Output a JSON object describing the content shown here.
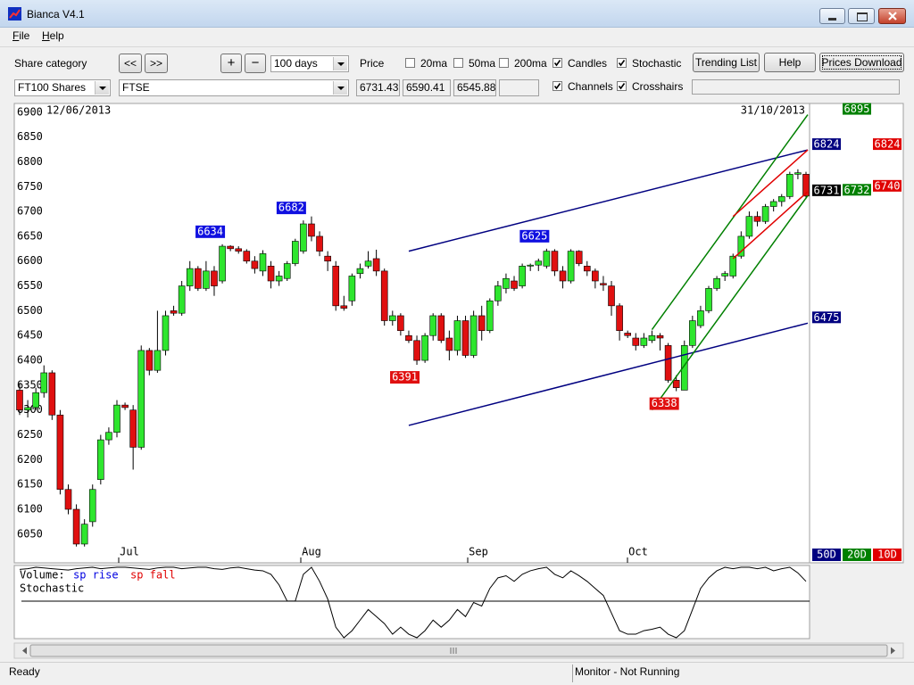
{
  "window": {
    "title": "Bianca V4.1"
  },
  "menu": [
    "File",
    "Help"
  ],
  "toolbar": {
    "share_category_label": "Share category",
    "prev": "<<",
    "next": ">>",
    "zoom_in": "+",
    "zoom_out": "−",
    "period": "100 days",
    "price_label": "Price",
    "checkboxes": [
      {
        "label": "20ma",
        "checked": false
      },
      {
        "label": "50ma",
        "checked": false
      },
      {
        "label": "200ma",
        "checked": false
      },
      {
        "label": "Candles",
        "checked": true
      },
      {
        "label": "Stochastic",
        "checked": true
      },
      {
        "label": "Channels",
        "checked": true
      },
      {
        "label": "Crosshairs",
        "checked": true
      }
    ],
    "buttons": [
      "Trending List",
      "Help",
      "Prices Download"
    ],
    "category": "FT100 Shares",
    "share": "FTSE",
    "prices": [
      "6731.43",
      "6590.41",
      "6545.88"
    ]
  },
  "chart_data": {
    "type": "candlestick",
    "start_date": "12/06/2013",
    "end_date": "31/10/2013",
    "months": [
      "Jul",
      "Aug",
      "Sep",
      "Oct"
    ],
    "ylim": [
      5994,
      6914
    ],
    "yticks": [
      6050,
      6100,
      6150,
      6200,
      6250,
      6300,
      6350,
      6400,
      6450,
      6500,
      6550,
      6600,
      6650,
      6700,
      6750,
      6800,
      6850,
      6900
    ],
    "up_color": "#2ee62e",
    "down_color": "#e01010",
    "candles": [
      [
        6340,
        6355,
        6290,
        6300
      ],
      [
        6300,
        6320,
        6285,
        6305
      ],
      [
        6305,
        6345,
        6300,
        6335
      ],
      [
        6335,
        6390,
        6325,
        6375
      ],
      [
        6375,
        6380,
        6280,
        6290
      ],
      [
        6290,
        6300,
        6130,
        6140
      ],
      [
        6140,
        6150,
        6090,
        6100
      ],
      [
        6100,
        6110,
        6025,
        6030
      ],
      [
        6030,
        6080,
        6025,
        6070
      ],
      [
        6075,
        6150,
        6065,
        6140
      ],
      [
        6160,
        6250,
        6150,
        6240
      ],
      [
        6240,
        6265,
        6230,
        6255
      ],
      [
        6255,
        6320,
        6245,
        6310
      ],
      [
        6310,
        6315,
        6300,
        6305
      ],
      [
        6300,
        6310,
        6180,
        6225
      ],
      [
        6225,
        6430,
        6220,
        6420
      ],
      [
        6420,
        6425,
        6370,
        6380
      ],
      [
        6380,
        6500,
        6375,
        6420
      ],
      [
        6420,
        6500,
        6410,
        6490
      ],
      [
        6500,
        6510,
        6490,
        6495
      ],
      [
        6495,
        6560,
        6490,
        6550
      ],
      [
        6550,
        6600,
        6540,
        6585
      ],
      [
        6585,
        6590,
        6540,
        6545
      ],
      [
        6545,
        6600,
        6540,
        6580
      ],
      [
        6580,
        6590,
        6530,
        6550
      ],
      [
        6560,
        6634,
        6555,
        6630
      ],
      [
        6630,
        6632,
        6620,
        6625
      ],
      [
        6625,
        6630,
        6615,
        6620
      ],
      [
        6620,
        6624,
        6595,
        6600
      ],
      [
        6600,
        6610,
        6575,
        6585
      ],
      [
        6580,
        6622,
        6570,
        6615
      ],
      [
        6590,
        6600,
        6545,
        6560
      ],
      [
        6560,
        6580,
        6550,
        6570
      ],
      [
        6565,
        6600,
        6560,
        6595
      ],
      [
        6595,
        6645,
        6590,
        6640
      ],
      [
        6620,
        6682,
        6615,
        6675
      ],
      [
        6675,
        6690,
        6640,
        6650
      ],
      [
        6650,
        6660,
        6610,
        6620
      ],
      [
        6610,
        6620,
        6580,
        6600
      ],
      [
        6590,
        6600,
        6500,
        6510
      ],
      [
        6510,
        6530,
        6500,
        6505
      ],
      [
        6520,
        6575,
        6510,
        6570
      ],
      [
        6575,
        6595,
        6565,
        6585
      ],
      [
        6590,
        6620,
        6585,
        6600
      ],
      [
        6605,
        6623,
        6570,
        6580
      ],
      [
        6580,
        6585,
        6470,
        6480
      ],
      [
        6480,
        6500,
        6470,
        6490
      ],
      [
        6490,
        6495,
        6450,
        6460
      ],
      [
        6450,
        6460,
        6435,
        6440
      ],
      [
        6440,
        6450,
        6391,
        6400
      ],
      [
        6400,
        6455,
        6395,
        6450
      ],
      [
        6450,
        6495,
        6440,
        6490
      ],
      [
        6490,
        6495,
        6435,
        6440
      ],
      [
        6445,
        6460,
        6400,
        6420
      ],
      [
        6420,
        6490,
        6410,
        6480
      ],
      [
        6480,
        6490,
        6405,
        6410
      ],
      [
        6410,
        6500,
        6405,
        6490
      ],
      [
        6490,
        6510,
        6440,
        6460
      ],
      [
        6460,
        6525,
        6455,
        6520
      ],
      [
        6520,
        6560,
        6510,
        6550
      ],
      [
        6545,
        6575,
        6535,
        6565
      ],
      [
        6560,
        6570,
        6540,
        6545
      ],
      [
        6550,
        6595,
        6545,
        6590
      ],
      [
        6590,
        6595,
        6580,
        6592
      ],
      [
        6592,
        6605,
        6580,
        6600
      ],
      [
        6590,
        6625,
        6585,
        6620
      ],
      [
        6620,
        6624,
        6570,
        6580
      ],
      [
        6580,
        6590,
        6545,
        6560
      ],
      [
        6560,
        6624,
        6555,
        6620
      ],
      [
        6620,
        6622,
        6590,
        6595
      ],
      [
        6590,
        6600,
        6570,
        6580
      ],
      [
        6580,
        6585,
        6545,
        6560
      ],
      [
        6555,
        6570,
        6540,
        6552
      ],
      [
        6550,
        6560,
        6490,
        6510
      ],
      [
        6510,
        6515,
        6440,
        6460
      ],
      [
        6455,
        6460,
        6445,
        6450
      ],
      [
        6445,
        6455,
        6420,
        6430
      ],
      [
        6430,
        6455,
        6425,
        6445
      ],
      [
        6440,
        6460,
        6435,
        6450
      ],
      [
        6450,
        6455,
        6420,
        6445
      ],
      [
        6430,
        6435,
        6355,
        6360
      ],
      [
        6360,
        6370,
        6338,
        6345
      ],
      [
        6340,
        6440,
        6340,
        6430
      ],
      [
        6430,
        6490,
        6425,
        6480
      ],
      [
        6470,
        6510,
        6465,
        6500
      ],
      [
        6500,
        6550,
        6495,
        6545
      ],
      [
        6545,
        6570,
        6540,
        6565
      ],
      [
        6570,
        6580,
        6560,
        6575
      ],
      [
        6570,
        6615,
        6565,
        6610
      ],
      [
        6610,
        6660,
        6605,
        6650
      ],
      [
        6650,
        6700,
        6645,
        6690
      ],
      [
        6690,
        6700,
        6670,
        6680
      ],
      [
        6680,
        6715,
        6675,
        6710
      ],
      [
        6710,
        6725,
        6700,
        6720
      ],
      [
        6720,
        6735,
        6710,
        6730
      ],
      [
        6730,
        6780,
        6725,
        6775
      ],
      [
        6775,
        6785,
        6765,
        6778
      ],
      [
        6775,
        6780,
        6725,
        6731
      ]
    ],
    "annotations": [
      {
        "value": 6634
      },
      {
        "value": 6682
      },
      {
        "value": 6625
      },
      {
        "value": 6391
      },
      {
        "value": 6338
      }
    ],
    "channels": [
      {
        "name": "50D",
        "days": 50,
        "color": "#000080",
        "upper": [
          6620,
          6824
        ],
        "lower": [
          6269,
          6475
        ]
      },
      {
        "name": "20D",
        "days": 20,
        "color": "#008000",
        "upper": [
          6462,
          6895
        ],
        "lower": [
          6300,
          6732
        ]
      },
      {
        "name": "10D",
        "days": 10,
        "color": "#e00000",
        "upper": [
          6690,
          6824
        ],
        "lower": [
          6605,
          6740
        ]
      }
    ],
    "lower_panel": {
      "volume_label": "Volume:",
      "rise_label": "sp rise",
      "fall_label": "sp fall",
      "stochastic_label": "Stochastic"
    },
    "stochastic": {
      "ylim": [
        0,
        100
      ],
      "values": [
        97,
        98,
        100,
        99,
        98,
        97,
        96,
        98,
        99,
        100,
        98,
        99,
        100,
        100,
        99,
        98,
        97,
        99,
        100,
        100,
        98,
        99,
        100,
        100,
        98,
        97,
        99,
        100,
        98,
        96,
        95,
        90,
        75,
        52,
        52,
        90,
        100,
        80,
        55,
        15,
        0,
        10,
        25,
        40,
        30,
        20,
        5,
        15,
        5,
        0,
        10,
        25,
        15,
        25,
        40,
        30,
        50,
        45,
        70,
        85,
        88,
        80,
        90,
        95,
        98,
        100,
        90,
        85,
        95,
        88,
        80,
        70,
        60,
        35,
        10,
        5,
        5,
        10,
        12,
        15,
        5,
        0,
        10,
        40,
        70,
        85,
        95,
        100,
        98,
        100,
        100,
        98,
        100,
        95,
        98,
        100,
        92,
        80
      ]
    }
  },
  "status": [
    "Ready",
    "Monitor - Not Running"
  ]
}
